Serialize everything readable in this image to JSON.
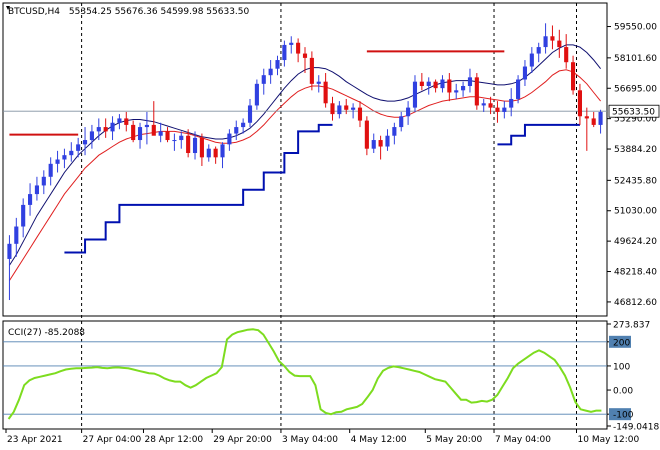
{
  "header": {
    "symbol": "BTCUSD,H4",
    "ohlc": "55354.25 55676.36 54599.98 55633.50"
  },
  "price_axis": {
    "ticks": [
      "59550.00",
      "58101.60",
      "56695.00",
      "55290.00",
      "53884.20",
      "52435.80",
      "51030.00",
      "49624.20",
      "48218.40",
      "46812.60"
    ],
    "current_price_label": "55633.50"
  },
  "cci_panel": {
    "label": "CCI(27) -85.2088",
    "ticks": [
      "273.837",
      "200",
      "100",
      "0.00",
      "-100",
      "-149.0418"
    ]
  },
  "time_axis": {
    "labels": [
      "23 Apr 2021",
      "27 Apr 04:00",
      "28 Apr 12:00",
      "29 Apr 20:00",
      "3 May 04:00",
      "4 May 12:00",
      "5 May 20:00",
      "7 May 04:00",
      "10 May 12:00"
    ]
  },
  "colors": {
    "bull": "#3040e0",
    "bear": "#e01010",
    "ma_fast": "#e02020",
    "ma_slow": "#101070",
    "support_line": "#0010b0",
    "resistance_line": "#d01010",
    "cci_line": "#7ddc1f",
    "level_lines": "#5080b0",
    "separator": "#000000"
  },
  "chart_data": {
    "type": "candlestick",
    "symbol": "BTCUSD",
    "timeframe": "H4",
    "y_range": [
      46300,
      60500
    ],
    "candles": [
      [
        48800,
        49900,
        46900,
        49500
      ],
      [
        49500,
        50700,
        48900,
        50300
      ],
      [
        50300,
        51600,
        49800,
        51300
      ],
      [
        51300,
        52300,
        50800,
        51800
      ],
      [
        51800,
        52600,
        51500,
        52200
      ],
      [
        52200,
        52900,
        51800,
        52600
      ],
      [
        52600,
        53500,
        52200,
        53200
      ],
      [
        53200,
        53800,
        52800,
        53400
      ],
      [
        53400,
        53900,
        53000,
        53600
      ],
      [
        53600,
        54200,
        53300,
        53800
      ],
      [
        53800,
        54400,
        53500,
        54100
      ],
      [
        54100,
        54900,
        53600,
        54300
      ],
      [
        54300,
        55000,
        53900,
        54700
      ],
      [
        54700,
        55300,
        54300,
        54900
      ],
      [
        54900,
        55300,
        54400,
        54700
      ],
      [
        54700,
        55400,
        54300,
        55100
      ],
      [
        55100,
        55500,
        54800,
        55300
      ],
      [
        55300,
        55600,
        54700,
        55000
      ],
      [
        55000,
        55200,
        54200,
        54300
      ],
      [
        54300,
        55100,
        53900,
        54900
      ],
      [
        54900,
        55600,
        54100,
        55000
      ],
      [
        55000,
        56100,
        54600,
        54500
      ],
      [
        54500,
        55100,
        54200,
        54700
      ],
      [
        54700,
        54900,
        54200,
        54300
      ],
      [
        54300,
        54600,
        53800,
        54300
      ],
      [
        54300,
        54700,
        53900,
        54500
      ],
      [
        54500,
        54800,
        53500,
        53700
      ],
      [
        53700,
        54700,
        53400,
        54400
      ],
      [
        54400,
        54600,
        53100,
        53500
      ],
      [
        53500,
        54100,
        53300,
        53900
      ],
      [
        53900,
        54000,
        53200,
        53500
      ],
      [
        53500,
        54200,
        53000,
        54100
      ],
      [
        54100,
        54800,
        53800,
        54600
      ],
      [
        54600,
        55200,
        54300,
        54900
      ],
      [
        54900,
        55300,
        54600,
        55100
      ],
      [
        55100,
        56200,
        54900,
        55900
      ],
      [
        55900,
        57100,
        55700,
        56900
      ],
      [
        56900,
        57600,
        56400,
        57300
      ],
      [
        57300,
        58000,
        56900,
        57600
      ],
      [
        57600,
        58200,
        57300,
        58000
      ],
      [
        58000,
        58900,
        57700,
        58700
      ],
      [
        58700,
        59100,
        58300,
        58800
      ],
      [
        58800,
        59000,
        57900,
        58300
      ],
      [
        58300,
        58600,
        57400,
        58100
      ],
      [
        58100,
        58400,
        56600,
        56900
      ],
      [
        56900,
        57300,
        56500,
        57000
      ],
      [
        57000,
        57400,
        55800,
        56000
      ],
      [
        56000,
        56300,
        55200,
        55500
      ],
      [
        55500,
        56100,
        55300,
        55900
      ],
      [
        55900,
        56200,
        55500,
        55700
      ],
      [
        55700,
        56000,
        55300,
        55800
      ],
      [
        55800,
        56100,
        54900,
        55200
      ],
      [
        55200,
        55400,
        53600,
        53900
      ],
      [
        53900,
        54600,
        53700,
        54300
      ],
      [
        54300,
        54500,
        53400,
        54000
      ],
      [
        54000,
        54800,
        53800,
        54500
      ],
      [
        54500,
        55100,
        54100,
        54900
      ],
      [
        54900,
        55600,
        54700,
        55400
      ],
      [
        55400,
        56100,
        55000,
        55800
      ],
      [
        55800,
        57300,
        55600,
        57000
      ],
      [
        57000,
        57400,
        56600,
        56800
      ],
      [
        56800,
        57200,
        56400,
        57000
      ],
      [
        57000,
        57100,
        56500,
        56700
      ],
      [
        56700,
        57300,
        56500,
        57100
      ],
      [
        57100,
        57400,
        56100,
        56500
      ],
      [
        56500,
        56900,
        56200,
        56600
      ],
      [
        56600,
        57000,
        56300,
        56800
      ],
      [
        56800,
        57600,
        56500,
        57200
      ],
      [
        57200,
        57400,
        55700,
        55900
      ],
      [
        55900,
        56200,
        55600,
        56000
      ],
      [
        56000,
        56300,
        55500,
        55800
      ],
      [
        55800,
        56100,
        55100,
        55600
      ],
      [
        55600,
        56100,
        55300,
        55800
      ],
      [
        55800,
        56700,
        55400,
        56200
      ],
      [
        56200,
        57300,
        56000,
        57100
      ],
      [
        57100,
        58000,
        56800,
        57700
      ],
      [
        57700,
        58600,
        57400,
        58300
      ],
      [
        58300,
        58800,
        57900,
        58600
      ],
      [
        58600,
        59700,
        58300,
        59100
      ],
      [
        59100,
        59600,
        58500,
        58900
      ],
      [
        58900,
        59400,
        58100,
        58600
      ],
      [
        58600,
        59200,
        57600,
        57900
      ],
      [
        57900,
        58200,
        56400,
        56600
      ],
      [
        56600,
        56900,
        55000,
        55400
      ],
      [
        55400,
        55800,
        53800,
        55300
      ],
      [
        55300,
        55600,
        54900,
        55000
      ],
      [
        55000,
        55700,
        54600,
        55600
      ]
    ],
    "ma_fast": [
      47800,
      48300,
      48800,
      49300,
      49800,
      50300,
      50800,
      51300,
      51800,
      52200,
      52600,
      53000,
      53300,
      53600,
      53800,
      54000,
      54200,
      54350,
      54450,
      54550,
      54600,
      54650,
      54700,
      54700,
      54700,
      54650,
      54600,
      54500,
      54400,
      54300,
      54200,
      54150,
      54150,
      54200,
      54300,
      54450,
      54700,
      55000,
      55350,
      55700,
      56000,
      56300,
      56550,
      56700,
      56800,
      56800,
      56750,
      56650,
      56500,
      56350,
      56200,
      56050,
      55850,
      55650,
      55500,
      55400,
      55350,
      55350,
      55450,
      55600,
      55750,
      55900,
      56000,
      56100,
      56150,
      56200,
      56250,
      56300,
      56300,
      56250,
      56200,
      56150,
      56100,
      56100,
      56150,
      56300,
      56500,
      56750,
      57000,
      57300,
      57500,
      57550,
      57450,
      57200,
      56900,
      56500,
      56100
    ],
    "ma_slow": [
      48500,
      49000,
      49600,
      50200,
      50800,
      51300,
      51800,
      52300,
      52800,
      53200,
      53600,
      53900,
      54200,
      54500,
      54750,
      54950,
      55100,
      55200,
      55250,
      55250,
      55200,
      55150,
      55050,
      54950,
      54850,
      54750,
      54650,
      54550,
      54450,
      54400,
      54350,
      54350,
      54400,
      54500,
      54650,
      54850,
      55150,
      55500,
      55900,
      56300,
      56700,
      57050,
      57350,
      57550,
      57650,
      57650,
      57600,
      57450,
      57250,
      57000,
      56800,
      56600,
      56400,
      56250,
      56150,
      56100,
      56100,
      56150,
      56250,
      56400,
      56550,
      56700,
      56850,
      56950,
      57000,
      57050,
      57050,
      57050,
      57000,
      56950,
      56900,
      56850,
      56850,
      56900,
      57000,
      57200,
      57450,
      57750,
      58050,
      58350,
      58550,
      58700,
      58700,
      58600,
      58350,
      58000,
      57600
    ],
    "support_steps": [
      [
        8,
        49100
      ],
      [
        11,
        49700
      ],
      [
        14,
        50500
      ],
      [
        16,
        51300
      ],
      [
        32,
        51300
      ],
      [
        34,
        52000
      ],
      [
        37,
        52800
      ],
      [
        40,
        53700
      ],
      [
        42,
        54700
      ],
      [
        45,
        55000
      ],
      [
        47,
        55000
      ]
    ],
    "support_steps_late": [
      [
        71,
        54100
      ],
      [
        73,
        54500
      ],
      [
        75,
        55000
      ],
      [
        83,
        55000
      ]
    ],
    "resistance_early": {
      "x0": 0,
      "x1": 10,
      "y": 54550
    },
    "resistance_late": {
      "x0": 52,
      "x1": 72,
      "y": 58400
    },
    "current_price": 55633.5,
    "cci": {
      "label": "CCI(27)",
      "last_value": -85.2088,
      "y_range": [
        -149.0418,
        273.837
      ],
      "levels": [
        200,
        100,
        -100
      ],
      "values": [
        -120,
        -90,
        -40,
        20,
        40,
        50,
        55,
        60,
        65,
        70,
        78,
        85,
        88,
        90,
        90,
        92,
        93,
        95,
        92,
        90,
        93,
        94,
        92,
        90,
        85,
        80,
        75,
        70,
        68,
        60,
        48,
        40,
        35,
        35,
        20,
        10,
        20,
        35,
        50,
        60,
        70,
        95,
        210,
        230,
        240,
        245,
        250,
        252,
        248,
        230,
        195,
        160,
        120,
        100,
        75,
        60,
        58,
        58,
        58,
        20,
        -80,
        -95,
        -100,
        -92,
        -90,
        -80,
        -75,
        -70,
        -58,
        -30,
        0,
        48,
        80,
        92,
        98,
        95,
        90,
        85,
        80,
        75,
        65,
        55,
        45,
        40,
        35,
        10,
        -15,
        -40,
        -40,
        -52,
        -50,
        -45,
        -48,
        -40,
        -20,
        15,
        50,
        90,
        110,
        125,
        140,
        155,
        165,
        155,
        140,
        125,
        95,
        60,
        10,
        -50,
        -80,
        -85,
        -90,
        -85,
        -85
      ]
    },
    "vertical_separators": [
      11,
      40,
      71,
      83
    ]
  }
}
